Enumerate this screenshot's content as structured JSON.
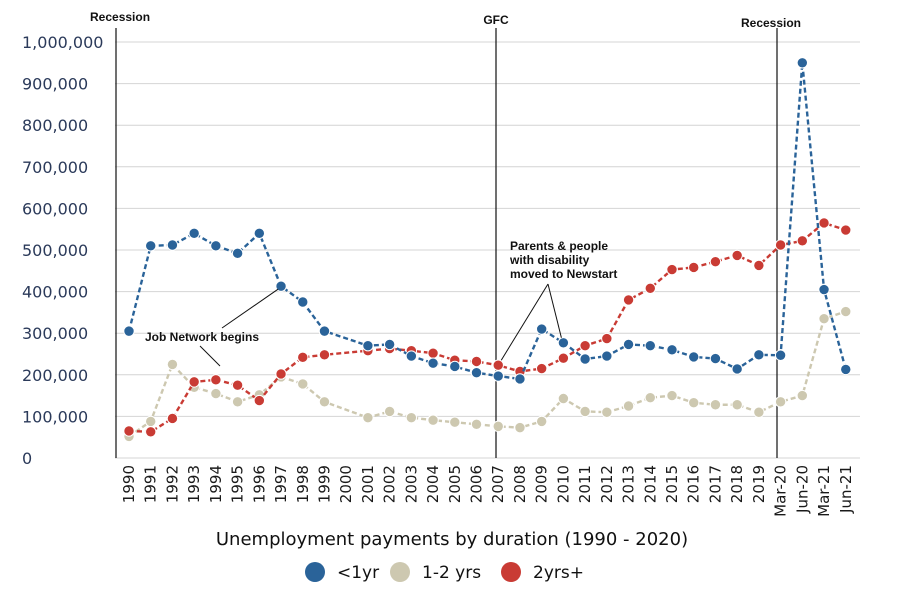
{
  "chart_data": {
    "type": "line",
    "title": "Unemployment payments by duration (1990 - 2020)",
    "xlabel": "",
    "ylabel": "",
    "ylim": [
      0,
      1000000
    ],
    "yticks": [
      0,
      100000,
      200000,
      300000,
      400000,
      500000,
      600000,
      700000,
      800000,
      900000,
      1000000
    ],
    "ytick_labels": [
      "0",
      "100,000",
      "200,000",
      "300,000",
      "400,000",
      "500,000",
      "600,000",
      "700,000",
      "800,000",
      "900,000",
      "1,000,000"
    ],
    "grid": "horizontal",
    "legend_position": "bottom-center",
    "categories": [
      "1990",
      "1991",
      "1992",
      "1993",
      "1994",
      "1995",
      "1996",
      "1997",
      "1998",
      "1999",
      "2000",
      "2001",
      "2002",
      "2003",
      "2004",
      "2005",
      "2006",
      "2007",
      "2008",
      "2009",
      "2010",
      "2011",
      "2012",
      "2013",
      "2014",
      "2015",
      "2016",
      "2017",
      "2018",
      "2019",
      "Mar-20",
      "Jun-20",
      "Mar-21",
      "Jun-21"
    ],
    "series": [
      {
        "name": "<1yr",
        "color": "#2a6399",
        "values": [
          305000,
          510000,
          512000,
          540000,
          510000,
          492000,
          540000,
          413000,
          375000,
          305000,
          null,
          270000,
          273000,
          245000,
          228000,
          220000,
          205000,
          197000,
          190000,
          310000,
          277000,
          238000,
          245000,
          273000,
          270000,
          260000,
          243000,
          239000,
          214000,
          248000,
          247000,
          950000,
          405000,
          213000
        ]
      },
      {
        "name": "1-2 yrs",
        "color": "#cdc8b0",
        "values": [
          52000,
          88000,
          225000,
          170000,
          155000,
          135000,
          152000,
          195000,
          178000,
          135000,
          null,
          97000,
          112000,
          97000,
          91000,
          86000,
          81000,
          76000,
          73000,
          88000,
          143000,
          112000,
          110000,
          125000,
          145000,
          150000,
          133000,
          128000,
          128000,
          110000,
          135000,
          150000,
          335000,
          352000
        ]
      },
      {
        "name": "2yrs+",
        "color": "#c93b34",
        "values": [
          65000,
          63000,
          95000,
          183000,
          188000,
          175000,
          138000,
          202000,
          242000,
          248000,
          null,
          258000,
          263000,
          258000,
          252000,
          235000,
          232000,
          223000,
          208000,
          215000,
          240000,
          270000,
          287000,
          380000,
          408000,
          453000,
          458000,
          472000,
          487000,
          463000,
          512000,
          522000,
          565000,
          548000
        ]
      }
    ],
    "events": [
      {
        "label": "Recession",
        "at": "1990"
      },
      {
        "label": "GFC",
        "at": "2007"
      },
      {
        "label": "Recession",
        "at": "Mar-20"
      }
    ],
    "annotations": [
      {
        "text_lines": [
          "Job Network begins"
        ],
        "at": "1997"
      },
      {
        "text_lines": [
          "Parents & people",
          "with disability",
          "moved to Newstart"
        ],
        "at": [
          "2007",
          "2010"
        ]
      }
    ]
  }
}
